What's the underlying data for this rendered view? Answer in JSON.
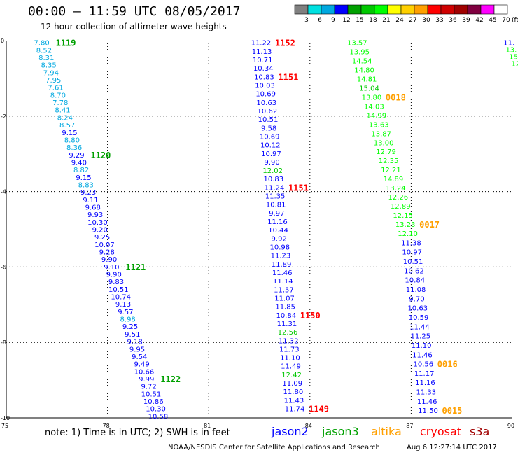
{
  "header": {
    "title": "00:00 – 11:59 UTC 08/05/2017",
    "subtitle": "12 hour collection of altimeter wave heights"
  },
  "legend": {
    "labels": [
      "3",
      "6",
      "9",
      "12",
      "15",
      "18",
      "21",
      "24",
      "27",
      "30",
      "33",
      "36",
      "39",
      "42",
      "45",
      "70"
    ],
    "unit": "(ft)",
    "colors": [
      "#808080",
      "#00e0e0",
      "#00a8e0",
      "#0000ff",
      "#00a000",
      "#00c800",
      "#00ff00",
      "#ffff00",
      "#ffd000",
      "#ffa000",
      "#ff0000",
      "#d00000",
      "#a00000",
      "#800040",
      "#ff00ff",
      "#ffffff"
    ]
  },
  "footer": {
    "note": "note:  1) Time is in UTC;  2) SWH is in feet",
    "center": "NOAA/NESDIS Center for Satellite Applications and Research",
    "timestamp": "Aug  6 12:27:14 UTC 2017",
    "satellites": [
      {
        "name": "jason2",
        "color": "#0000ff"
      },
      {
        "name": "jason3",
        "color": "#00a000"
      },
      {
        "name": "altika",
        "color": "#ffa000"
      },
      {
        "name": "cryosat",
        "color": "#ff0000"
      },
      {
        "name": "s3a",
        "color": "#a00000"
      }
    ]
  },
  "chart_data": {
    "type": "scatter",
    "xlim": [
      75,
      90
    ],
    "ylim": [
      -10,
      0
    ],
    "x_ticks": [
      "75",
      "78",
      "81",
      "84",
      "87",
      "90"
    ],
    "y_ticks": [
      "0",
      "-2",
      "-4",
      "-6",
      "-8",
      "-10"
    ],
    "grid": true,
    "tracks": [
      {
        "name": "track-1",
        "x_start": 76.05,
        "y_start": -0.05,
        "x_end": 79.5,
        "y_end": -9.95,
        "values": [
          "7.80",
          "8.52",
          "8.31",
          "8.35",
          "7.94",
          "7.95",
          "7.61",
          "8.70",
          "7.78",
          "8.41",
          "8.24",
          "8.57",
          "9.15",
          "8.80",
          "8.36",
          "9.29",
          "9.40",
          "8.82",
          "9.15",
          "8.83",
          "9.23",
          "9.11",
          "9.68",
          "9.93",
          "10.30",
          "9.20",
          "9.25",
          "10.07",
          "9.28",
          "9.90",
          "9.10",
          "9.90",
          "9.83",
          "10.51",
          "10.74",
          "9.13",
          "9.57",
          "8.98",
          "9.25",
          "9.51",
          "9.18",
          "9.95",
          "9.54",
          "9.49",
          "10.66",
          "9.99",
          "9.72",
          "10.51",
          "10.86",
          "10.30",
          "10.58"
        ],
        "colors": [
          "#00a8e0",
          "#00a8e0",
          "#00a8e0",
          "#00a8e0",
          "#00a8e0",
          "#00a8e0",
          "#00a8e0",
          "#00a8e0",
          "#00a8e0",
          "#00a8e0",
          "#00a8e0",
          "#00a8e0",
          "#0000ff",
          "#00a8e0",
          "#00a8e0",
          "#0000ff",
          "#0000ff",
          "#00a8e0",
          "#0000ff",
          "#00a8e0",
          "#0000ff",
          "#0000ff",
          "#0000ff",
          "#0000ff",
          "#0000ff",
          "#0000ff",
          "#0000ff",
          "#0000ff",
          "#0000ff",
          "#0000ff",
          "#0000ff",
          "#0000ff",
          "#0000ff",
          "#0000ff",
          "#0000ff",
          "#0000ff",
          "#0000ff",
          "#00a8e0",
          "#0000ff",
          "#0000ff",
          "#0000ff",
          "#0000ff",
          "#0000ff",
          "#0000ff",
          "#0000ff",
          "#0000ff",
          "#0000ff",
          "#0000ff",
          "#0000ff",
          "#0000ff",
          "#0000ff"
        ],
        "times": [
          {
            "label": "1119",
            "index": 0,
            "color": "#00a000"
          },
          {
            "label": "1120",
            "index": 15,
            "color": "#00a000"
          },
          {
            "label": "1121",
            "index": 30,
            "color": "#00a000"
          },
          {
            "label": "1122",
            "index": 45,
            "color": "#00a000"
          }
        ]
      },
      {
        "name": "track-2",
        "x_start": 82.55,
        "y_start": -0.05,
        "x_end": 83.55,
        "y_end": -9.75,
        "values": [
          "11.22",
          "11.13",
          "10.71",
          "10.34",
          "10.83",
          "10.03",
          "10.69",
          "10.63",
          "10.62",
          "10.51",
          "9.58",
          "10.69",
          "10.12",
          "10.97",
          "9.90",
          "12.02",
          "10.83",
          "11.24",
          "11.35",
          "10.81",
          "9.97",
          "11.16",
          "10.44",
          "9.92",
          "10.98",
          "11.23",
          "11.89",
          "11.46",
          "11.14",
          "11.57",
          "11.07",
          "11.85",
          "10.84",
          "11.31",
          "12.56",
          "11.32",
          "11.73",
          "11.10",
          "11.49",
          "12.42",
          "11.09",
          "11.80",
          "11.43",
          "11.74"
        ],
        "colors": [
          "#0000ff",
          "#0000ff",
          "#0000ff",
          "#0000ff",
          "#0000ff",
          "#0000ff",
          "#0000ff",
          "#0000ff",
          "#0000ff",
          "#0000ff",
          "#0000ff",
          "#0000ff",
          "#0000ff",
          "#0000ff",
          "#0000ff",
          "#00c800",
          "#0000ff",
          "#0000ff",
          "#0000ff",
          "#0000ff",
          "#0000ff",
          "#0000ff",
          "#0000ff",
          "#0000ff",
          "#0000ff",
          "#0000ff",
          "#0000ff",
          "#0000ff",
          "#0000ff",
          "#0000ff",
          "#0000ff",
          "#0000ff",
          "#0000ff",
          "#0000ff",
          "#00c800",
          "#0000ff",
          "#0000ff",
          "#0000ff",
          "#0000ff",
          "#00c800",
          "#0000ff",
          "#0000ff",
          "#0000ff",
          "#0000ff"
        ],
        "times": [
          {
            "label": "1152",
            "index": 0,
            "color": "#ff0000"
          },
          {
            "label": "1151",
            "index": 4,
            "color": "#ff0000"
          },
          {
            "label": "1151",
            "index": 17,
            "color": "#ff0000"
          },
          {
            "label": "1150",
            "index": 32,
            "color": "#ff0000"
          },
          {
            "label": "1149",
            "index": 43,
            "color": "#ff0000"
          }
        ]
      },
      {
        "name": "track-3",
        "x_start": 85.4,
        "y_start": -0.05,
        "x_end": 86.9,
        "y_end": -5.1,
        "values": [
          "13.57",
          "13.95",
          "14.54",
          "14.80",
          "14.81",
          "15.04",
          "13.80",
          "14.03",
          "14.99",
          "13.63",
          "13.87",
          "13.00",
          "12.79",
          "12.35",
          "12.21",
          "14.89",
          "13.24",
          "12.26",
          "12.89",
          "12.15",
          "13.23",
          "12.10"
        ],
        "colors": [
          "#00ff00",
          "#00ff00",
          "#00ff00",
          "#00ff00",
          "#00ff00",
          "#00c800",
          "#00ff00",
          "#00ff00",
          "#00ff00",
          "#00ff00",
          "#00ff00",
          "#00ff00",
          "#00ff00",
          "#00ff00",
          "#00ff00",
          "#00ff00",
          "#00ff00",
          "#00ff00",
          "#00ff00",
          "#00ff00",
          "#00ff00",
          "#00ff00"
        ],
        "times": [
          {
            "label": "0018",
            "index": 6,
            "color": "#ffa000"
          },
          {
            "label": "0017",
            "index": 20,
            "color": "#ffa000"
          }
        ]
      },
      {
        "name": "track-4",
        "x_start": 87.0,
        "y_start": -5.35,
        "x_end": 87.5,
        "y_end": -9.8,
        "values": [
          "11.38",
          "10.97",
          "10.51",
          "10.62",
          "10.84",
          "11.08",
          "9.70",
          "10.63",
          "10.59",
          "11.44",
          "11.25",
          "11.10",
          "11.46",
          "10.56",
          "11.17",
          "11.16",
          "11.33",
          "11.46",
          "11.50"
        ],
        "colors": [
          "#0000ff",
          "#0000ff",
          "#0000ff",
          "#0000ff",
          "#0000ff",
          "#0000ff",
          "#0000ff",
          "#0000ff",
          "#0000ff",
          "#0000ff",
          "#0000ff",
          "#0000ff",
          "#0000ff",
          "#0000ff",
          "#0000ff",
          "#0000ff",
          "#0000ff",
          "#0000ff",
          "#0000ff"
        ],
        "times": [
          {
            "label": "0016",
            "index": 13,
            "color": "#ffa000"
          },
          {
            "label": "0015",
            "index": 18,
            "color": "#ffa000"
          }
        ]
      },
      {
        "name": "track-5",
        "x_start": 89.9,
        "y_start": -0.05,
        "x_end": 90.1,
        "y_end": -0.6,
        "values": [
          "11.",
          "13.",
          "15",
          "12"
        ],
        "colors": [
          "#0000ff",
          "#00ff00",
          "#00ff00",
          "#00ff00"
        ],
        "times": []
      }
    ]
  }
}
